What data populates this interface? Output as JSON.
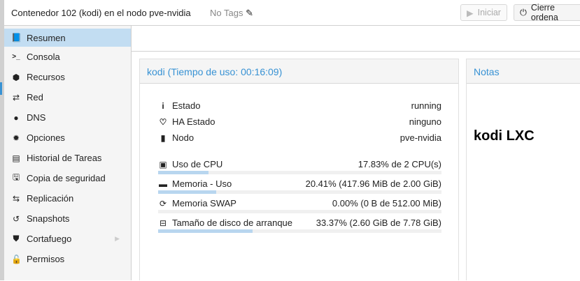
{
  "header": {
    "title": "Contenedor 102 (kodi) en el nodo pve-nvidia",
    "tags": "No Tags",
    "start_label": "Iniciar",
    "shutdown_label": "Cierre ordena"
  },
  "sidebar": {
    "items": [
      {
        "label": "Resumen",
        "icon": "book-icon",
        "selected": true
      },
      {
        "label": "Consola",
        "icon": "terminal-icon"
      },
      {
        "label": "Recursos",
        "icon": "cube-icon"
      },
      {
        "label": "Red",
        "icon": "exchange-icon"
      },
      {
        "label": "DNS",
        "icon": "globe-icon"
      },
      {
        "label": "Opciones",
        "icon": "gear-icon"
      },
      {
        "label": "Historial de Tareas",
        "icon": "list-icon"
      },
      {
        "label": "Copia de seguridad",
        "icon": "floppy-icon"
      },
      {
        "label": "Replicación",
        "icon": "retweet-icon"
      },
      {
        "label": "Snapshots",
        "icon": "history-icon"
      },
      {
        "label": "Cortafuego",
        "icon": "shield-icon",
        "has_submenu": true
      },
      {
        "label": "Permisos",
        "icon": "unlock-icon"
      }
    ]
  },
  "status": {
    "title": "kodi (Tiempo de uso: 00:16:09)",
    "info": [
      {
        "label": "Estado",
        "value": "running",
        "icon": "info-icon"
      },
      {
        "label": "HA Estado",
        "value": "ninguno",
        "icon": "heartbeat-icon"
      },
      {
        "label": "Nodo",
        "value": "pve-nvidia",
        "icon": "building-icon"
      }
    ],
    "usage": [
      {
        "label": "Uso de CPU",
        "value": "17.83% de 2 CPU(s)",
        "percent": 17.83,
        "icon": "cpu-icon"
      },
      {
        "label": "Memoria - Uso",
        "value": "20.41% (417.96 MiB de 2.00 GiB)",
        "percent": 20.41,
        "icon": "memory-icon"
      },
      {
        "label": "Memoria SWAP",
        "value": "0.00% (0 B de 512.00 MiB)",
        "percent": 0,
        "icon": "refresh-icon"
      },
      {
        "label": "Tamaño de disco de arranque",
        "value": "33.37% (2.60 GiB de 7.78 GiB)",
        "percent": 33.37,
        "icon": "hdd-icon"
      }
    ]
  },
  "notes": {
    "title": "Notas",
    "content": "kodi LXC"
  },
  "colors": {
    "accent": "#3892d4",
    "selected": "#c2ddf2",
    "bar_fill": "#b8d6ef"
  }
}
